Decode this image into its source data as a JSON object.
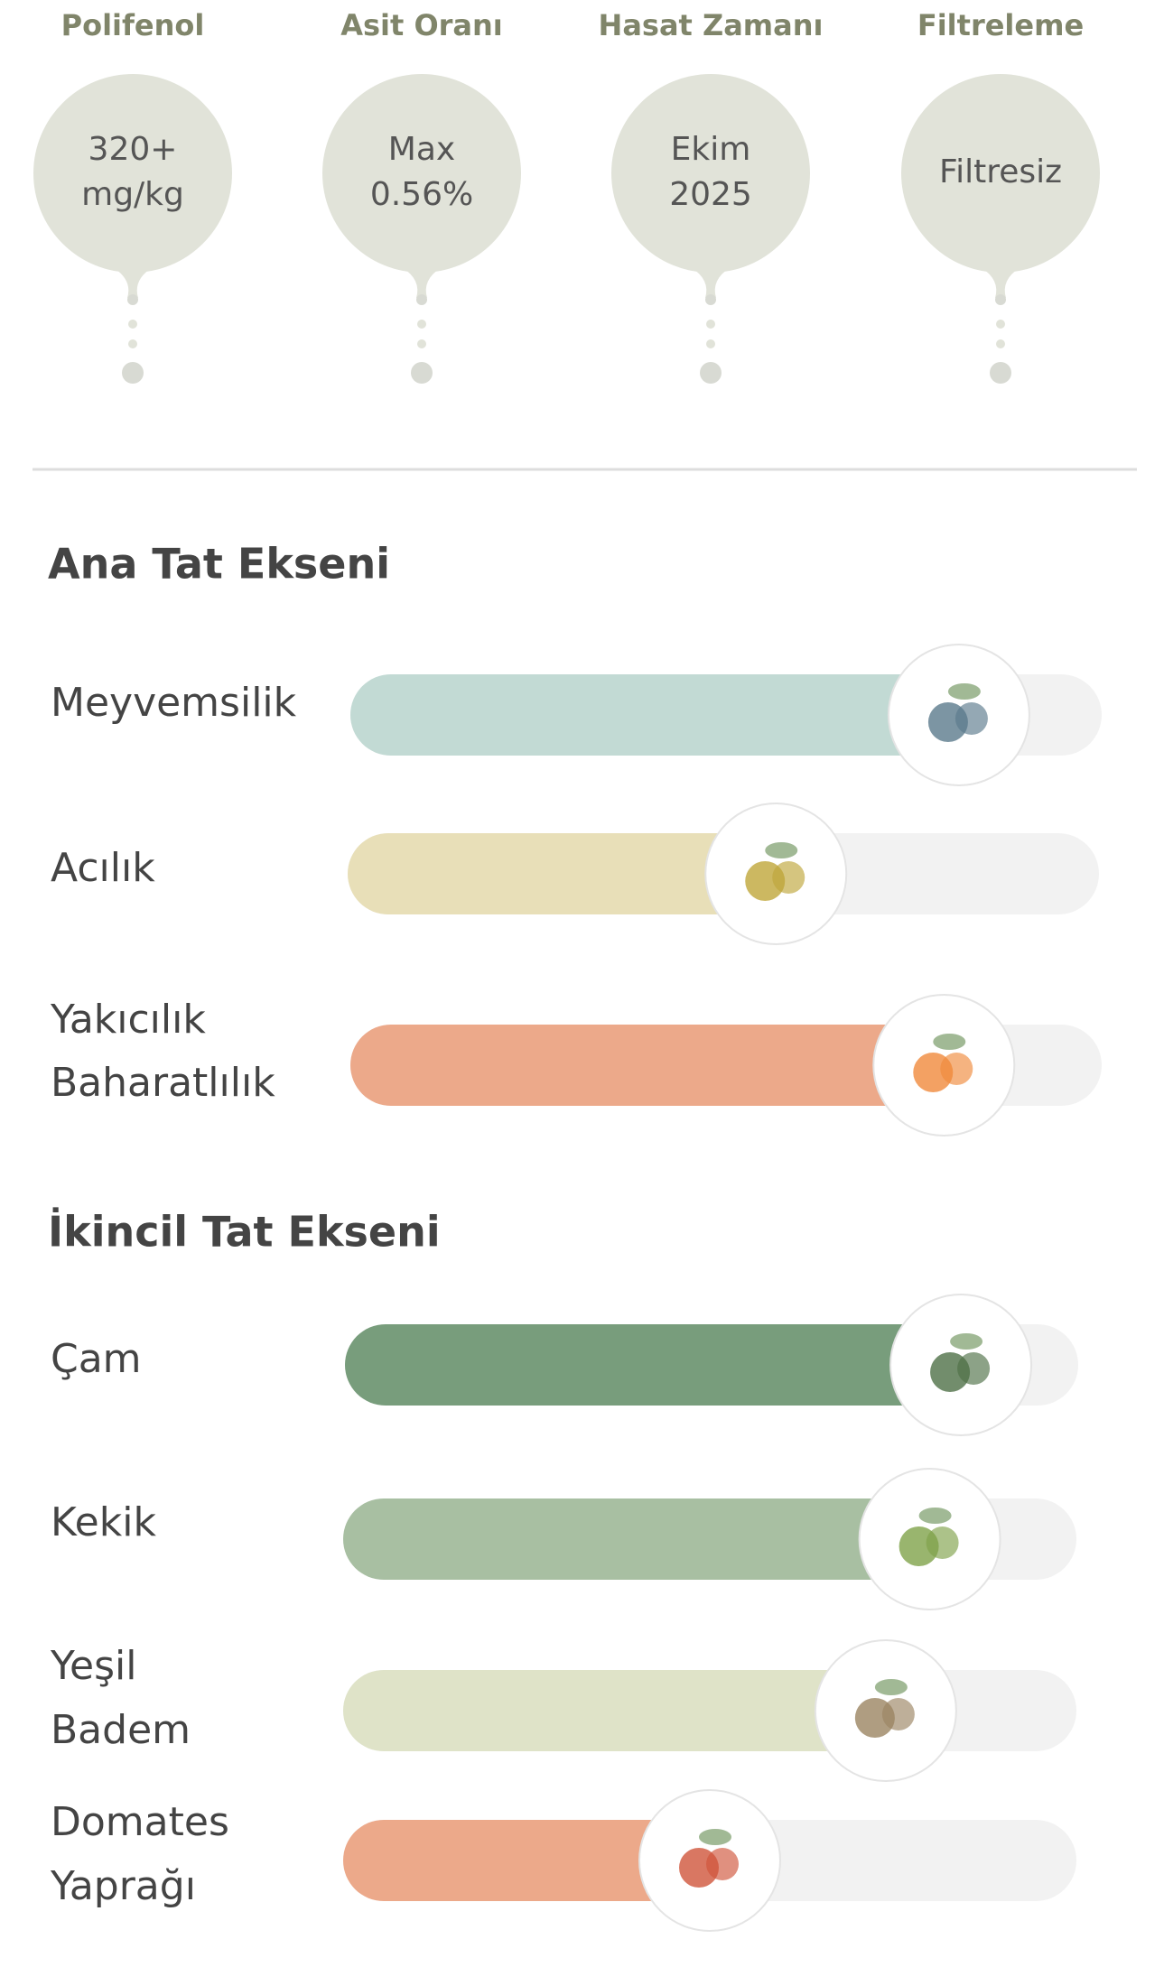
{
  "specs": [
    {
      "title": "Polifenol",
      "lines": [
        "320+",
        "mg/kg"
      ]
    },
    {
      "title": "Asit Oranı",
      "lines": [
        "Max",
        "0.56%"
      ]
    },
    {
      "title": "Hasat Zamanı",
      "lines": [
        "Ekim",
        "2025"
      ]
    },
    {
      "title": "Filtreleme",
      "lines": [
        "Filtresiz"
      ]
    }
  ],
  "sections": [
    {
      "title": "Ana Tat Ekseni",
      "rows": [
        {
          "label": [
            "Meyvemsilik"
          ],
          "level": 81,
          "color": "#c2dad4"
        },
        {
          "label": [
            "Acılık"
          ],
          "level": 57,
          "color": "#e8dfb8"
        },
        {
          "label": [
            "Yakıcılık",
            "Baharatlılık"
          ],
          "level": 79,
          "color": "#eca98a"
        }
      ]
    },
    {
      "title": "İkincil Tat Ekseni",
      "rows": [
        {
          "label": [
            "Çam"
          ],
          "level": 84,
          "color": "#789d7c"
        },
        {
          "label": [
            "Kekik"
          ],
          "level": 80,
          "color": "#a8bfa2"
        },
        {
          "label": [
            "Yeşil",
            "Badem"
          ],
          "level": 74,
          "color": "#dfe3c8"
        },
        {
          "label": [
            "Domates",
            "Yaprağı"
          ],
          "level": 50,
          "color": "#eca98a"
        }
      ]
    }
  ]
}
